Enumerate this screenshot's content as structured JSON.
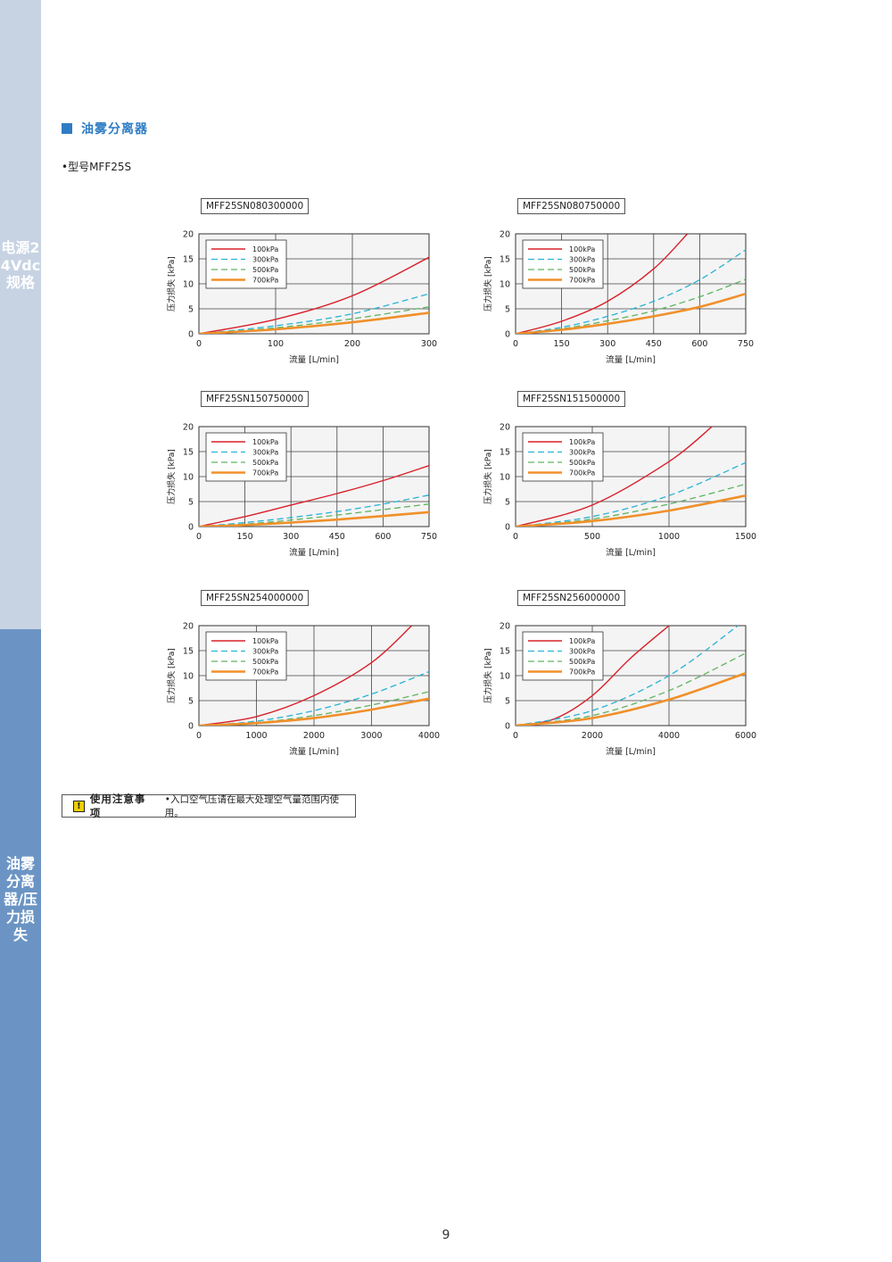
{
  "sidebar": {
    "top_text": "电源24Vdc规格",
    "bottom_text": "油雾分离器/压力损失"
  },
  "section": {
    "title": "油雾分离器"
  },
  "model_line": "•型号MFF25S",
  "notice": {
    "icon": "!",
    "title": "使用注意事项",
    "text": "•入口空气压请在最大处理空气量范围内使用。"
  },
  "page_number": "9",
  "colors": {
    "p100": "#d8202a",
    "p300": "#27b3d6",
    "p500": "#5fb360",
    "p700": "#f0902a",
    "accent": "#2f7cc4"
  },
  "chart_data": [
    {
      "type": "line",
      "model": "MFF25SN080300000",
      "xlabel": "流量 [L/min]",
      "ylabel": "压力损失 [kPa]",
      "xlim": [
        0,
        300
      ],
      "ylim": [
        0,
        20
      ],
      "xticks": [
        0,
        100,
        200,
        300
      ],
      "yticks": [
        0,
        5,
        10,
        15,
        20
      ],
      "legend_position": "top-left",
      "series": [
        {
          "name": "100kPa",
          "points": [
            [
              0,
              0
            ],
            [
              100,
              2.9
            ],
            [
              200,
              7.6
            ],
            [
              300,
              15.3
            ]
          ]
        },
        {
          "name": "300kPa",
          "points": [
            [
              0,
              0
            ],
            [
              100,
              1.6
            ],
            [
              200,
              4.0
            ],
            [
              300,
              8.0
            ]
          ]
        },
        {
          "name": "500kPa",
          "points": [
            [
              0,
              0
            ],
            [
              100,
              1.2
            ],
            [
              200,
              3.0
            ],
            [
              300,
              5.4
            ]
          ]
        },
        {
          "name": "700kPa",
          "points": [
            [
              0,
              0
            ],
            [
              100,
              0.9
            ],
            [
              200,
              2.3
            ],
            [
              300,
              4.2
            ]
          ]
        }
      ]
    },
    {
      "type": "line",
      "model": "MFF25SN080750000",
      "xlabel": "流量 [L/min]",
      "ylabel": "压力损失 [kPa]",
      "xlim": [
        0,
        750
      ],
      "ylim": [
        0,
        20
      ],
      "xticks": [
        0,
        150,
        300,
        450,
        600,
        750
      ],
      "yticks": [
        0,
        5,
        10,
        15,
        20
      ],
      "legend_position": "top-left",
      "series": [
        {
          "name": "100kPa",
          "points": [
            [
              0,
              0
            ],
            [
              150,
              2.5
            ],
            [
              300,
              6.5
            ],
            [
              450,
              13.0
            ],
            [
              560,
              20.0
            ]
          ]
        },
        {
          "name": "300kPa",
          "points": [
            [
              0,
              0
            ],
            [
              150,
              1.3
            ],
            [
              300,
              3.5
            ],
            [
              450,
              6.5
            ],
            [
              600,
              10.8
            ],
            [
              750,
              16.8
            ]
          ]
        },
        {
          "name": "500kPa",
          "points": [
            [
              0,
              0
            ],
            [
              150,
              1.0
            ],
            [
              300,
              2.6
            ],
            [
              450,
              4.6
            ],
            [
              600,
              7.4
            ],
            [
              750,
              10.9
            ]
          ]
        },
        {
          "name": "700kPa",
          "points": [
            [
              0,
              0
            ],
            [
              150,
              0.8
            ],
            [
              300,
              2.0
            ],
            [
              450,
              3.5
            ],
            [
              600,
              5.4
            ],
            [
              750,
              8.0
            ]
          ]
        }
      ]
    },
    {
      "type": "line",
      "model": "MFF25SN150750000",
      "xlabel": "流量 [L/min]",
      "ylabel": "压力损失 [kPa]",
      "xlim": [
        0,
        750
      ],
      "ylim": [
        0,
        20
      ],
      "xticks": [
        0,
        150,
        300,
        450,
        600,
        750
      ],
      "yticks": [
        0,
        5,
        10,
        15,
        20
      ],
      "legend_position": "top-left",
      "series": [
        {
          "name": "100kPa",
          "points": [
            [
              0,
              0
            ],
            [
              150,
              2.0
            ],
            [
              300,
              4.3
            ],
            [
              450,
              6.6
            ],
            [
              600,
              9.2
            ],
            [
              750,
              12.2
            ]
          ]
        },
        {
          "name": "300kPa",
          "points": [
            [
              0,
              0
            ],
            [
              150,
              0.8
            ],
            [
              300,
              1.8
            ],
            [
              450,
              3.0
            ],
            [
              600,
              4.5
            ],
            [
              750,
              6.3
            ]
          ]
        },
        {
          "name": "500kPa",
          "points": [
            [
              0,
              0
            ],
            [
              150,
              0.5
            ],
            [
              300,
              1.3
            ],
            [
              450,
              2.3
            ],
            [
              600,
              3.4
            ],
            [
              750,
              4.5
            ]
          ]
        },
        {
          "name": "700kPa",
          "points": [
            [
              0,
              0
            ],
            [
              150,
              0.3
            ],
            [
              300,
              0.8
            ],
            [
              450,
              1.4
            ],
            [
              600,
              2.1
            ],
            [
              750,
              2.9
            ]
          ]
        }
      ]
    },
    {
      "type": "line",
      "model": "MFF25SN151500000",
      "xlabel": "流量 [L/min]",
      "ylabel": "压力损失 [kPa]",
      "xlim": [
        0,
        1500
      ],
      "ylim": [
        0,
        20
      ],
      "xticks": [
        0,
        500,
        1000,
        1500
      ],
      "yticks": [
        0,
        5,
        10,
        15,
        20
      ],
      "legend_position": "top-left",
      "series": [
        {
          "name": "100kPa",
          "points": [
            [
              0,
              0
            ],
            [
              500,
              4.3
            ],
            [
              1000,
              13.0
            ],
            [
              1280,
              20.0
            ]
          ]
        },
        {
          "name": "300kPa",
          "points": [
            [
              0,
              0
            ],
            [
              500,
              2.0
            ],
            [
              1000,
              6.2
            ],
            [
              1500,
              12.8
            ]
          ]
        },
        {
          "name": "500kPa",
          "points": [
            [
              0,
              0
            ],
            [
              500,
              1.5
            ],
            [
              1000,
              4.5
            ],
            [
              1500,
              8.5
            ]
          ]
        },
        {
          "name": "700kPa",
          "points": [
            [
              0,
              0
            ],
            [
              500,
              1.1
            ],
            [
              1000,
              3.2
            ],
            [
              1500,
              6.2
            ]
          ]
        }
      ]
    },
    {
      "type": "line",
      "model": "MFF25SN254000000",
      "xlabel": "流量 [L/min]",
      "ylabel": "压力损失 [kPa]",
      "xlim": [
        0,
        4000
      ],
      "ylim": [
        0,
        20
      ],
      "xticks": [
        0,
        1000,
        2000,
        3000,
        4000
      ],
      "yticks": [
        0,
        5,
        10,
        15,
        20
      ],
      "legend_position": "top-left",
      "series": [
        {
          "name": "100kPa",
          "points": [
            [
              0,
              0
            ],
            [
              1000,
              1.8
            ],
            [
              2000,
              6.0
            ],
            [
              3000,
              12.6
            ],
            [
              3700,
              20.0
            ]
          ]
        },
        {
          "name": "300kPa",
          "points": [
            [
              0,
              0
            ],
            [
              1000,
              0.9
            ],
            [
              2000,
              3.0
            ],
            [
              3000,
              6.3
            ],
            [
              4000,
              10.8
            ]
          ]
        },
        {
          "name": "500kPa",
          "points": [
            [
              0,
              0
            ],
            [
              1000,
              0.6
            ],
            [
              2000,
              2.0
            ],
            [
              3000,
              4.1
            ],
            [
              4000,
              6.8
            ]
          ]
        },
        {
          "name": "700kPa",
          "points": [
            [
              0,
              0
            ],
            [
              1000,
              0.5
            ],
            [
              2000,
              1.5
            ],
            [
              3000,
              3.2
            ],
            [
              4000,
              5.4
            ]
          ]
        }
      ]
    },
    {
      "type": "line",
      "model": "MFF25SN256000000",
      "xlabel": "流量 [L/min]",
      "ylabel": "压力损失 [kPa]",
      "xlim": [
        0,
        6000
      ],
      "ylim": [
        0,
        20
      ],
      "xticks": [
        0,
        2000,
        4000,
        6000
      ],
      "yticks": [
        0,
        5,
        10,
        15,
        20
      ],
      "legend_position": "top-left",
      "series": [
        {
          "name": "100kPa",
          "points": [
            [
              0,
              0
            ],
            [
              1000,
              1.3
            ],
            [
              2000,
              6.0
            ],
            [
              3000,
              13.5
            ],
            [
              4000,
              20.0
            ]
          ]
        },
        {
          "name": "300kPa",
          "points": [
            [
              0,
              0
            ],
            [
              2000,
              3.0
            ],
            [
              4000,
              10.0
            ],
            [
              5800,
              20.0
            ]
          ]
        },
        {
          "name": "500kPa",
          "points": [
            [
              0,
              0
            ],
            [
              2000,
              2.0
            ],
            [
              4000,
              7.0
            ],
            [
              6000,
              14.5
            ]
          ]
        },
        {
          "name": "700kPa",
          "points": [
            [
              0,
              0
            ],
            [
              2000,
              1.5
            ],
            [
              4000,
              5.2
            ],
            [
              6000,
              10.5
            ]
          ]
        }
      ]
    }
  ]
}
